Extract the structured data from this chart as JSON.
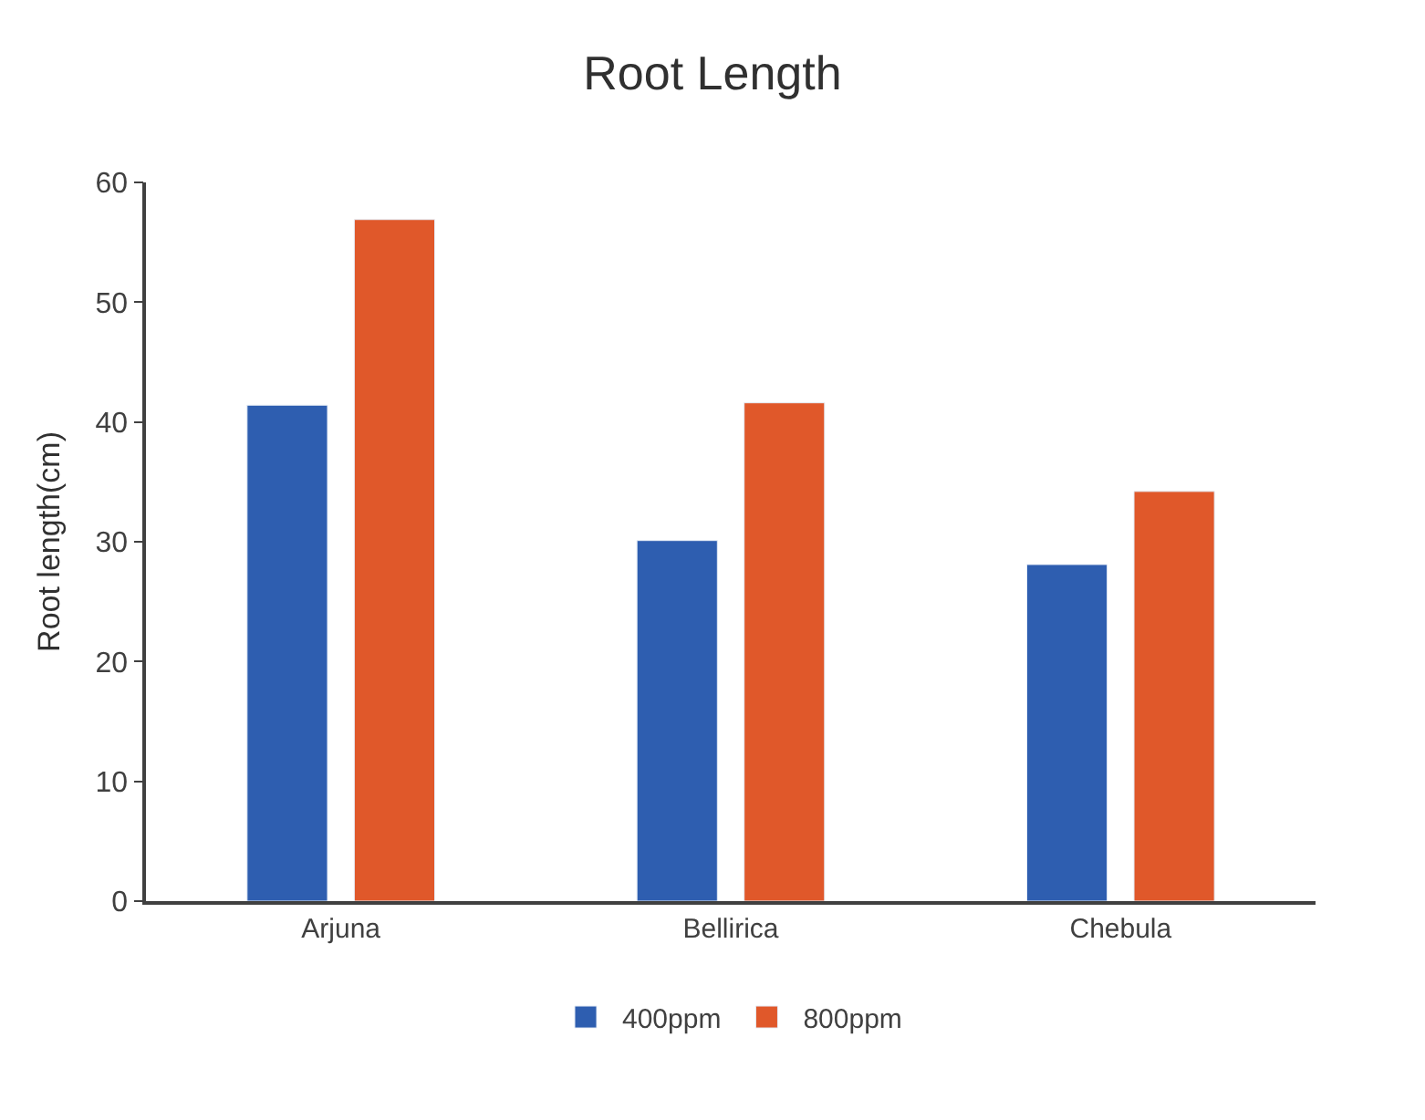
{
  "chart_data": {
    "type": "bar",
    "title": "Root Length",
    "ylabel": "Root length(cm)",
    "categories": [
      "Arjuna",
      "Bellirica",
      "Chebula"
    ],
    "series": [
      {
        "name": "400ppm",
        "color": "#2e5eb0",
        "values": [
          41.4,
          30.1,
          28.1
        ]
      },
      {
        "name": "800ppm",
        "color": "#e0582a",
        "values": [
          56.9,
          41.6,
          34.2
        ]
      }
    ],
    "ylim": [
      0,
      60
    ],
    "yticks": [
      0,
      10,
      20,
      30,
      40,
      50,
      60
    ],
    "legend": "bottom"
  }
}
